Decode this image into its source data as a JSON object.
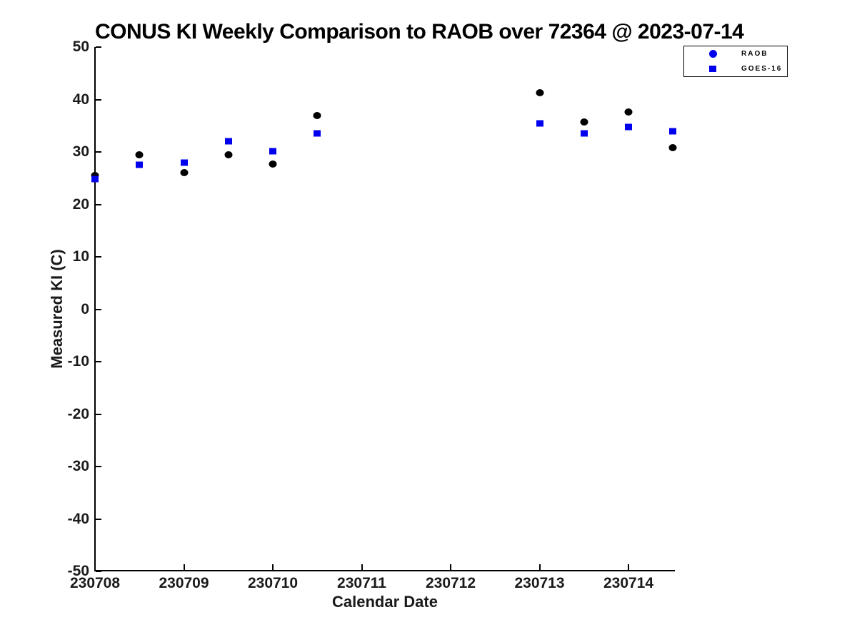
{
  "chart_data": {
    "type": "scatter",
    "title": "CONUS KI Weekly Comparison to RAOB over 72364 @ 2023-07-14",
    "xlabel": "Calendar Date",
    "ylabel": "Measured KI (C)",
    "x_tick_labels": [
      "230708",
      "230709",
      "230710",
      "230711",
      "230712",
      "230713",
      "230714"
    ],
    "y_tick_values": [
      50,
      40,
      30,
      20,
      10,
      0,
      -10,
      -20,
      -30,
      -40,
      -50
    ],
    "ylim": [
      -50,
      50
    ],
    "grid": false,
    "legend_position": "top-right",
    "axis_color": "#000000",
    "series": [
      {
        "name": "RAOB",
        "marker": "circle",
        "plot_color": "#000000",
        "legend_color": "#0000EE",
        "x": [
          230708,
          230708.5,
          230709,
          230709.5,
          230710,
          230710.5,
          230713,
          230713.5,
          230714,
          230714.5
        ],
        "values": [
          25.5,
          29.5,
          26.1,
          29.4,
          27.7,
          36.9,
          41.3,
          35.7,
          37.6,
          30.8
        ]
      },
      {
        "name": "GOES-16",
        "marker": "square",
        "plot_color": "#0000EE",
        "legend_color": "#0000EE",
        "x": [
          230708,
          230708.5,
          230709,
          230709.5,
          230710,
          230710.5,
          230713,
          230713.5,
          230714,
          230714.5
        ],
        "values": [
          24.8,
          27.5,
          27.9,
          32.0,
          30.1,
          33.5,
          35.5,
          33.5,
          34.8,
          34.0
        ]
      }
    ]
  }
}
